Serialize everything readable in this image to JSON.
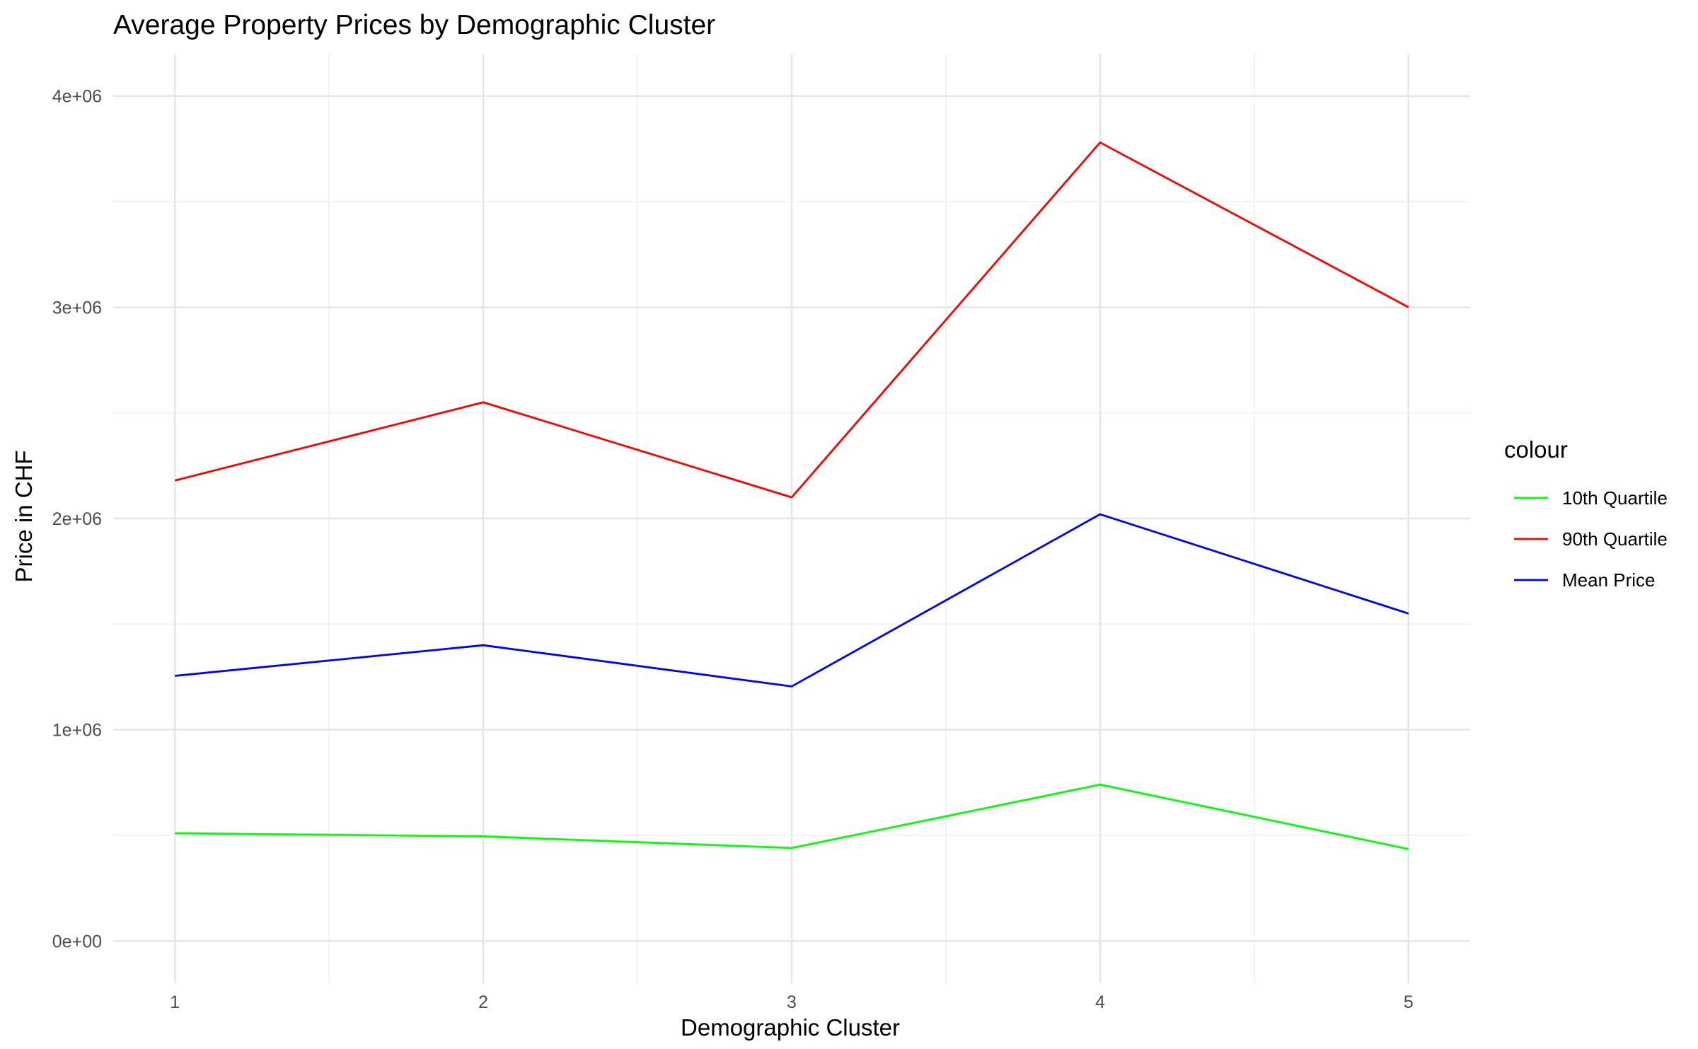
{
  "chart_data": {
    "type": "line",
    "title": "Average Property Prices by Demographic Cluster",
    "xlabel": "Demographic Cluster",
    "ylabel": "Price in CHF",
    "x": [
      1,
      2,
      3,
      4,
      5
    ],
    "x_tick_labels": [
      "1",
      "2",
      "3",
      "4",
      "5"
    ],
    "xlim": [
      0.8,
      5.2
    ],
    "ylim": [
      -200000,
      4200000
    ],
    "y_ticks": [
      0,
      1000000,
      2000000,
      3000000,
      4000000
    ],
    "y_tick_labels": [
      "0e+00",
      "1e+06",
      "2e+06",
      "3e+06",
      "4e+06"
    ],
    "grid": true,
    "legend": {
      "title": "colour",
      "position": "right"
    },
    "series": [
      {
        "name": "10th Quartile",
        "color": "#00ff00",
        "values": [
          510000,
          495000,
          440000,
          740000,
          435000
        ]
      },
      {
        "name": "90th Quartile",
        "color": "#ff0000",
        "values": [
          2180000,
          2550000,
          2100000,
          3780000,
          3000000
        ]
      },
      {
        "name": "Mean Price",
        "color": "#0000ff",
        "values": [
          1255000,
          1400000,
          1205000,
          2020000,
          1550000
        ]
      }
    ]
  }
}
